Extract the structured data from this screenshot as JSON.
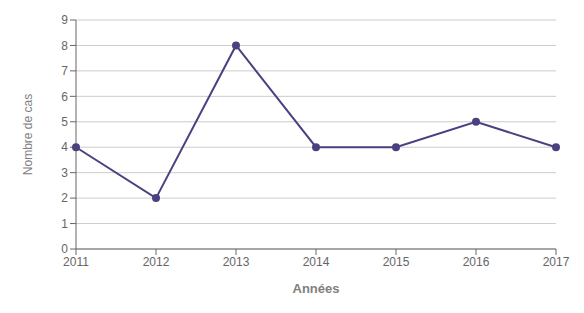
{
  "chart_data": {
    "type": "line",
    "categories": [
      "2011",
      "2012",
      "2013",
      "2014",
      "2015",
      "2016",
      "2017"
    ],
    "values": [
      4,
      2,
      8,
      4,
      4,
      5,
      4
    ],
    "color": "#4d4080",
    "marker": "circle",
    "x_label": "Années",
    "y_label": "Nombre de cas",
    "ylim": [
      0,
      9
    ],
    "yticks": [
      0,
      1,
      2,
      3,
      4,
      5,
      6,
      7,
      8,
      9
    ],
    "grid": true
  }
}
